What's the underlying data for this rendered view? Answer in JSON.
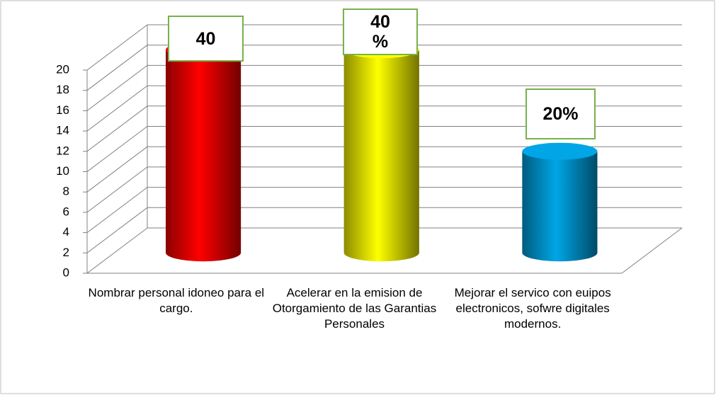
{
  "chart_data": {
    "type": "cylinder",
    "categories": [
      "Nombrar personal idoneo para el cargo.",
      "Acelerar en la emision de Otorgamiento de las Garantias Personales",
      "Mejorar el servico con euipos electronicos, sofwre digitales modernos."
    ],
    "values": [
      20,
      20,
      10
    ],
    "colors": [
      "#ff0000",
      "#ffff00",
      "#00a6e6"
    ],
    "annotations": [
      "40",
      "40 %",
      "20%"
    ],
    "ylim": [
      0,
      20
    ],
    "yticks": [
      0,
      2,
      4,
      6,
      8,
      10,
      12,
      14,
      16,
      18,
      20
    ],
    "grid": true
  }
}
